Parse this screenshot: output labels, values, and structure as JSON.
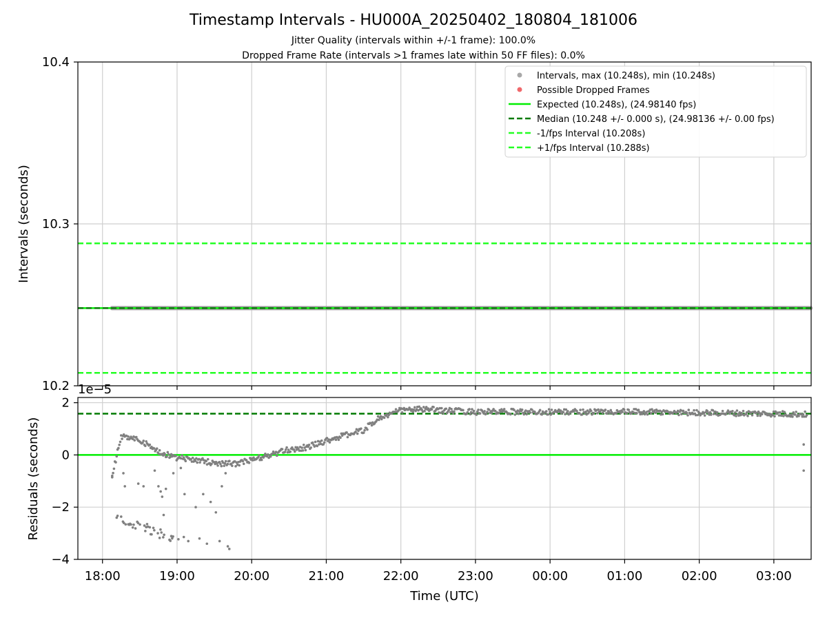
{
  "chart_data": {
    "title": "Timestamp Intervals - HU000A_20250402_180804_181006",
    "subtitle_lines": [
      "Jitter Quality (intervals within +/-1 frame): 100.0%",
      "Dropped Frame Rate (intervals >1 frames late within 50 FF files): 0.0%"
    ],
    "xlabel": "Time (UTC)",
    "x_tick_labels": [
      "18:00",
      "19:00",
      "20:00",
      "21:00",
      "22:00",
      "23:00",
      "00:00",
      "01:00",
      "02:00",
      "03:00"
    ],
    "x_range_hours": [
      17.67,
      27.5
    ],
    "grid": true,
    "legend_placement": "upper right",
    "colors": {
      "points": "#808080",
      "dropped": "#f0686b",
      "expected": "#00ee00",
      "median": "#007a00",
      "interval_bounds": "#22ff22"
    },
    "top": {
      "type": "scatter",
      "ylabel": "Intervals (seconds)",
      "ylim": [
        10.2,
        10.4
      ],
      "y_tick_labels": [
        "10.2",
        "10.3",
        "10.4"
      ],
      "expected": 10.248,
      "median": 10.248,
      "lower_bound": 10.208,
      "upper_bound": 10.288,
      "points_range_hours": [
        18.13,
        27.5
      ],
      "points_value": 10.248,
      "legend": [
        {
          "label": "Intervals, max (10.248s), min (10.248s)",
          "kind": "marker",
          "color": "#a8a8a8"
        },
        {
          "label": "Possible Dropped Frames",
          "kind": "marker",
          "color": "#f0686b"
        },
        {
          "label": "Expected (10.248s), (24.98140 fps)",
          "kind": "solid",
          "color": "#00ee00"
        },
        {
          "label": "Median (10.248 +/- 0.000 s), (24.98136 +/- 0.00 fps)",
          "kind": "dashed",
          "color": "#007a00"
        },
        {
          "label": "-1/fps Interval (10.208s)",
          "kind": "dashed",
          "color": "#22ff22"
        },
        {
          "label": "+1/fps Interval (10.288s)",
          "kind": "dashed",
          "color": "#22ff22"
        }
      ]
    },
    "bottom": {
      "type": "scatter",
      "ylabel": "Residuals (seconds)",
      "y_offset_label": "1e−5",
      "ylim": [
        -4,
        2.2
      ],
      "y_tick_labels": [
        "−4",
        "−2",
        "0",
        "2"
      ],
      "expected_line": 0,
      "median_line": 1.58,
      "trend": [
        [
          18.13,
          -0.8
        ],
        [
          18.25,
          0.7
        ],
        [
          18.5,
          0.6
        ],
        [
          18.75,
          0.1
        ],
        [
          19.0,
          -0.1
        ],
        [
          19.25,
          -0.2
        ],
        [
          19.5,
          -0.3
        ],
        [
          19.75,
          -0.35
        ],
        [
          20.0,
          -0.2
        ],
        [
          20.25,
          0.0
        ],
        [
          20.5,
          0.2
        ],
        [
          20.75,
          0.3
        ],
        [
          21.0,
          0.55
        ],
        [
          21.25,
          0.75
        ],
        [
          21.5,
          0.95
        ],
        [
          21.7,
          1.4
        ],
        [
          21.85,
          1.55
        ],
        [
          22.0,
          1.72
        ],
        [
          22.3,
          1.75
        ],
        [
          22.6,
          1.7
        ],
        [
          23.0,
          1.65
        ],
        [
          24.0,
          1.65
        ],
        [
          25.0,
          1.65
        ],
        [
          26.0,
          1.62
        ],
        [
          26.5,
          1.6
        ],
        [
          27.0,
          1.58
        ],
        [
          27.45,
          1.55
        ]
      ],
      "lower_cluster": [
        [
          18.13,
          -2.2
        ],
        [
          18.3,
          -2.5
        ],
        [
          18.5,
          -2.7
        ],
        [
          18.75,
          -3.0
        ],
        [
          19.0,
          -3.2
        ]
      ],
      "outliers": [
        [
          18.13,
          -0.8
        ],
        [
          18.28,
          -0.7
        ],
        [
          18.3,
          -1.2
        ],
        [
          18.48,
          -1.1
        ],
        [
          18.55,
          -1.2
        ],
        [
          18.7,
          -0.6
        ],
        [
          18.75,
          -1.2
        ],
        [
          18.78,
          -1.4
        ],
        [
          18.8,
          -1.6
        ],
        [
          18.82,
          -2.3
        ],
        [
          18.85,
          -1.3
        ],
        [
          18.95,
          -0.7
        ],
        [
          19.05,
          -0.5
        ],
        [
          19.1,
          -1.5
        ],
        [
          19.15,
          -3.3
        ],
        [
          19.25,
          -2.0
        ],
        [
          19.3,
          -3.2
        ],
        [
          19.35,
          -1.5
        ],
        [
          19.4,
          -3.4
        ],
        [
          19.45,
          -1.8
        ],
        [
          19.52,
          -2.2
        ],
        [
          19.57,
          -3.3
        ],
        [
          19.6,
          -1.2
        ],
        [
          19.65,
          -0.7
        ],
        [
          19.68,
          -3.5
        ],
        [
          19.7,
          -3.6
        ],
        [
          27.4,
          0.4
        ],
        [
          27.4,
          -0.6
        ]
      ]
    }
  }
}
